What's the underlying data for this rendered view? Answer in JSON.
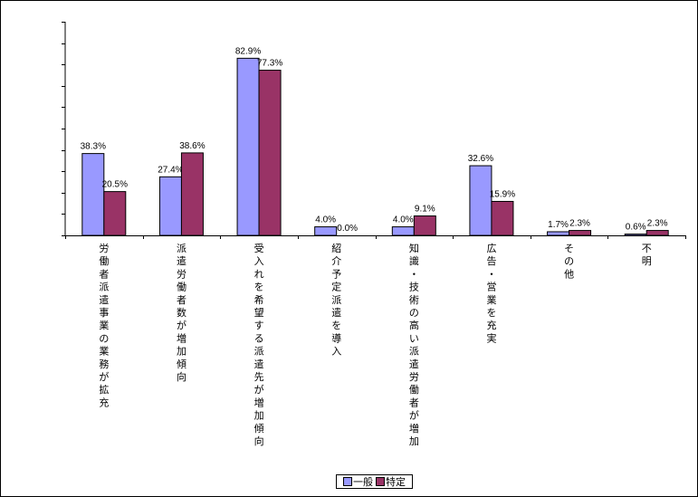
{
  "chart_data": {
    "type": "bar",
    "categories": [
      "労働者派遣事業の業務が拡充",
      "派遣労働者数が増加傾向",
      "受入れを希望する派遣先が増加傾向",
      "紹介予定派遣を導入",
      "知識・技術の高い派遣労働者が増加",
      "広告・営業を充実",
      "その他",
      "不明"
    ],
    "series": [
      {
        "name": "一般",
        "color": "#9999ff",
        "values": [
          38.3,
          27.4,
          82.9,
          4.0,
          4.0,
          32.6,
          1.7,
          0.6
        ],
        "labels": [
          "38.3%",
          "27.4%",
          "82.9%",
          "4.0%",
          "4.0%",
          "32.6%",
          "1.7%",
          "0.6%"
        ]
      },
      {
        "name": "特定",
        "color": "#993366",
        "values": [
          20.5,
          38.6,
          77.3,
          0.0,
          9.1,
          15.9,
          2.3,
          2.3
        ],
        "labels": [
          "20.5%",
          "38.6%",
          "77.3%",
          "0.0%",
          "9.1%",
          "15.9%",
          "2.3%",
          "2.3%"
        ]
      }
    ],
    "ylim": [
      0,
      100
    ],
    "ytick_step": 10,
    "show_ytick_labels": false,
    "grid": false,
    "legend_position": "bottom"
  }
}
